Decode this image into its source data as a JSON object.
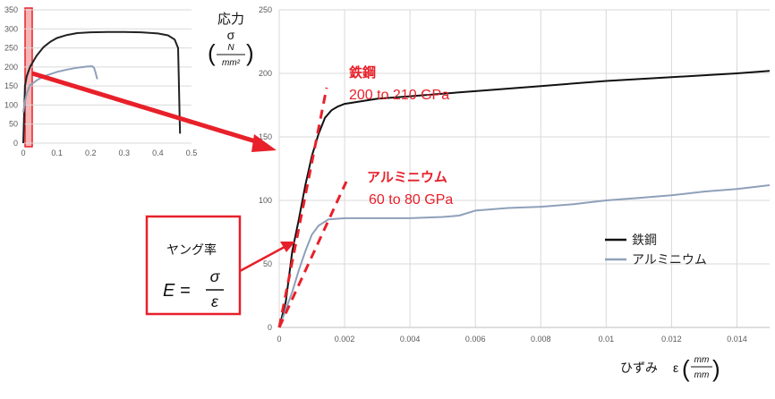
{
  "chart_data": [
    {
      "type": "line",
      "title": "",
      "xlim": [
        0,
        0.5
      ],
      "ylim": [
        0,
        350
      ],
      "x_ticks": [
        "0",
        "0.1",
        "0.2",
        "0.3",
        "0.4",
        "0.5"
      ],
      "y_ticks": [
        "0",
        "50",
        "100",
        "150",
        "200",
        "250",
        "300",
        "350"
      ],
      "grid": true,
      "highlight_region": [
        0.0,
        0.02
      ],
      "series": [
        {
          "color": "#222222",
          "x": [
            0,
            0.005,
            0.01,
            0.02,
            0.04,
            0.06,
            0.08,
            0.1,
            0.13,
            0.16,
            0.2,
            0.25,
            0.3,
            0.35,
            0.4,
            0.43,
            0.45,
            0.46,
            0.462,
            0.465,
            0.466
          ],
          "y": [
            0,
            150,
            175,
            200,
            230,
            252,
            266,
            276,
            284,
            289,
            291,
            292,
            292,
            291,
            288,
            283,
            272,
            250,
            180,
            60,
            25
          ]
        },
        {
          "color": "#8fa0ba",
          "x": [
            0,
            0.005,
            0.01,
            0.02,
            0.04,
            0.06,
            0.08,
            0.1,
            0.13,
            0.16,
            0.19,
            0.205,
            0.21,
            0.215,
            0.22
          ],
          "y": [
            80,
            110,
            130,
            152,
            165,
            175,
            181,
            187,
            193,
            198,
            201,
            202,
            198,
            185,
            168
          ]
        }
      ]
    },
    {
      "type": "line",
      "title": "",
      "xlim": [
        0,
        0.015
      ],
      "ylim": [
        0,
        250
      ],
      "x_ticks": [
        "0",
        "0.002",
        "0.004",
        "0.006",
        "0.008",
        "0.01",
        "0.012",
        "0.014"
      ],
      "y_ticks": [
        "0",
        "50",
        "100",
        "150",
        "200",
        "250"
      ],
      "xlabel": "ひずみ",
      "ylabel": "応力",
      "grid": true,
      "legend_position": "right",
      "series": [
        {
          "name": "鉄鋼",
          "color": "#111111",
          "x": [
            0,
            0.0002,
            0.0004,
            0.0006,
            0.0008,
            0.001,
            0.0012,
            0.0014,
            0.0016,
            0.0018,
            0.002,
            0.0025,
            0.003,
            0.004,
            0.005,
            0.006,
            0.008,
            0.01,
            0.012,
            0.014,
            0.015
          ],
          "y": [
            0,
            20,
            60,
            85,
            112,
            135,
            152,
            165,
            171,
            174,
            176,
            178,
            180,
            182,
            184,
            186,
            190,
            194,
            197,
            200,
            202
          ]
        },
        {
          "name": "アルミニウム",
          "color": "#8fa0ba",
          "x": [
            0,
            0.0002,
            0.0004,
            0.0006,
            0.0008,
            0.001,
            0.0012,
            0.0015,
            0.002,
            0.003,
            0.004,
            0.005,
            0.0055,
            0.006,
            0.007,
            0.008,
            0.009,
            0.01,
            0.011,
            0.012,
            0.013,
            0.014,
            0.015
          ],
          "y": [
            0,
            14,
            28,
            45,
            60,
            73,
            80,
            85,
            86,
            86,
            86,
            87,
            88,
            92,
            94,
            95,
            97,
            100,
            102,
            104,
            107,
            109,
            112
          ]
        }
      ],
      "moduli": [
        {
          "label": "鉄鋼",
          "value": "200 to 210 GPa"
        },
        {
          "label": "アルミニウム",
          "value": "60 to 80 GPa"
        }
      ]
    }
  ],
  "labels": {
    "stress_jp": "応力",
    "sigma": "σ",
    "unit_num": "N",
    "unit_den": "mm²",
    "strain_jp": "ひずみ",
    "epsilon": "ε",
    "strain_unit_num": "mm",
    "strain_unit_den": "mm",
    "youngs": "ヤング率",
    "formula_lhs": "E =",
    "formula_num": "σ",
    "formula_den": "ε"
  },
  "colors": {
    "accent": "#e8202a",
    "steel": "#111111",
    "aluminium": "#8fa0ba",
    "grid": "#d9d9d9",
    "axis_text": "#595959"
  }
}
